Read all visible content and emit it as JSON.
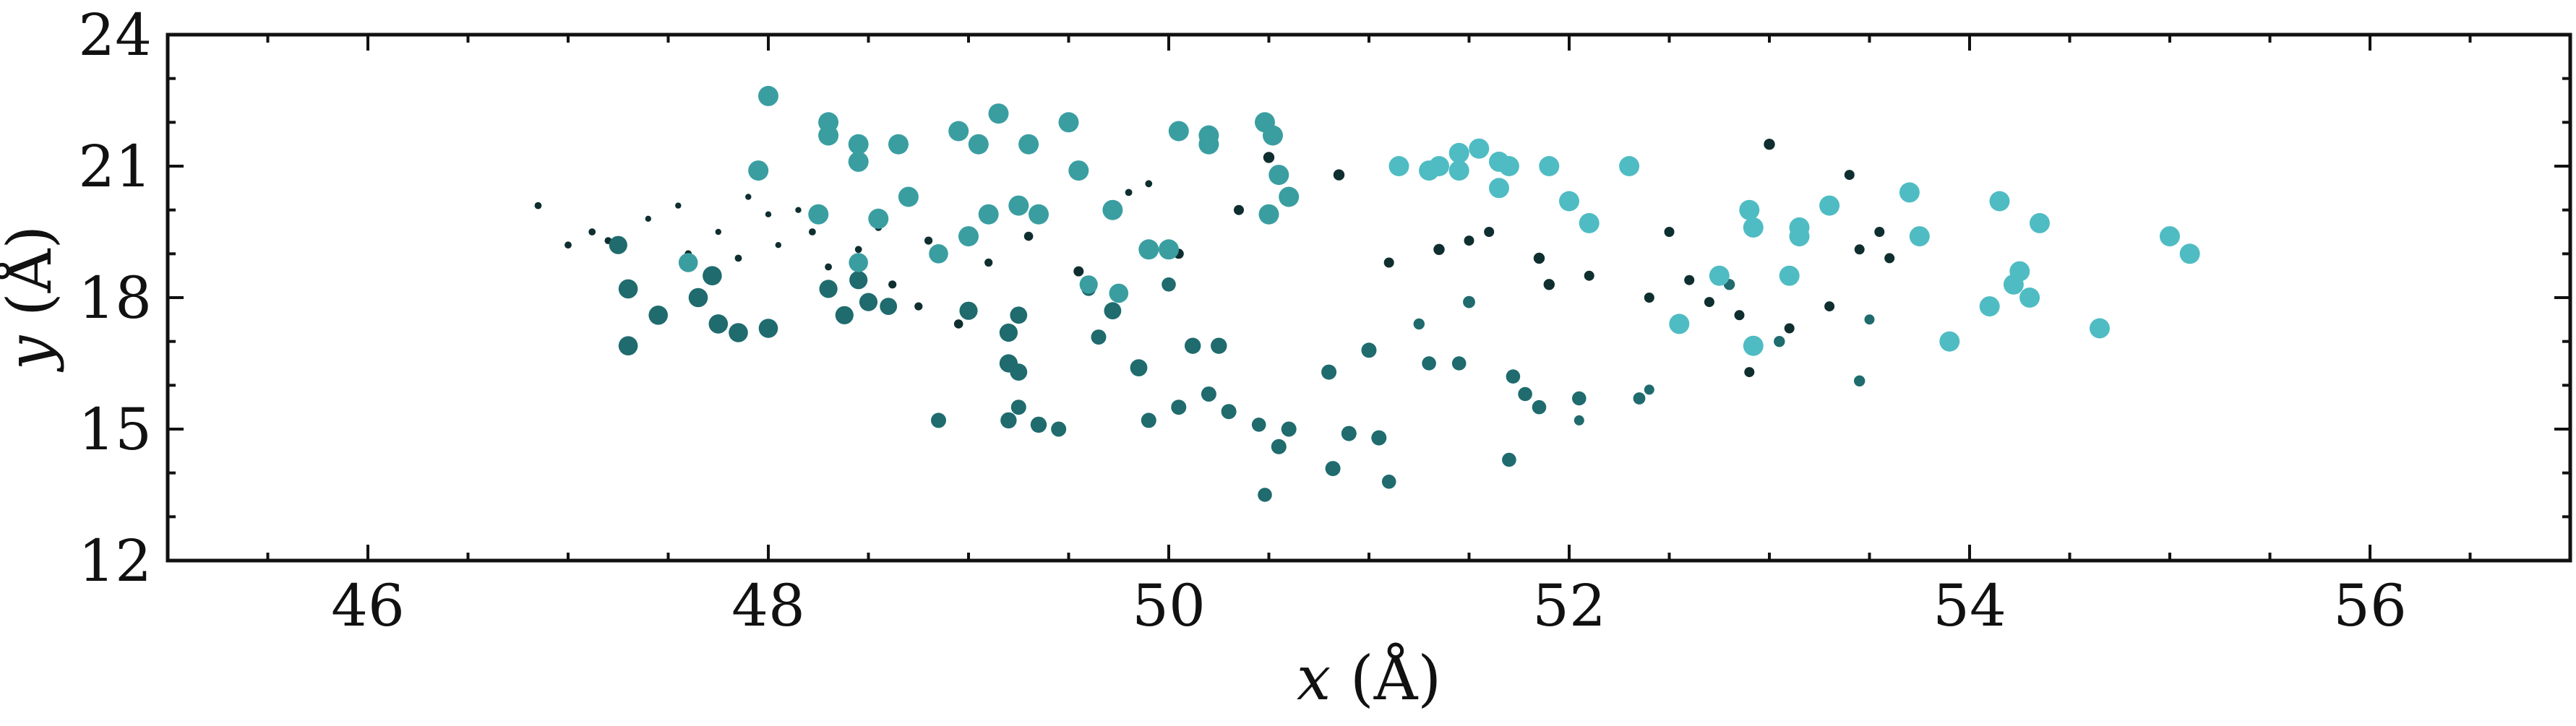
{
  "chart_data": {
    "type": "scatter",
    "xlabel": {
      "var": "x",
      "unit": " (Å)"
    },
    "ylabel": {
      "var": "y",
      "unit": " (Å)"
    },
    "xlim": [
      45,
      57
    ],
    "ylim": [
      12,
      24
    ],
    "xticks": [
      46,
      48,
      50,
      52,
      54,
      56
    ],
    "yticks": [
      12,
      15,
      18,
      21,
      24
    ],
    "xtick_labels": [
      "46",
      "48",
      "50",
      "52",
      "54",
      "56"
    ],
    "ytick_labels": [
      "12",
      "15",
      "18",
      "21",
      "24"
    ],
    "grid": false,
    "colors": {
      "small": "#0f2e2f",
      "mid": "#1f6b6e",
      "teal": "#3a9ea1",
      "light": "#4fbcc3"
    },
    "points": [
      [
        46.85,
        20.1,
        "small",
        0.35
      ],
      [
        47.0,
        19.2,
        "small",
        0.35
      ],
      [
        47.12,
        19.5,
        "small",
        0.35
      ],
      [
        47.2,
        19.3,
        "small",
        0.35
      ],
      [
        47.4,
        19.8,
        "small",
        0.3
      ],
      [
        47.55,
        20.1,
        "small",
        0.3
      ],
      [
        47.6,
        19.0,
        "small",
        0.35
      ],
      [
        47.75,
        19.5,
        "small",
        0.3
      ],
      [
        47.85,
        18.9,
        "small",
        0.35
      ],
      [
        47.9,
        20.3,
        "small",
        0.3
      ],
      [
        48.0,
        19.9,
        "small",
        0.3
      ],
      [
        48.05,
        19.2,
        "small",
        0.3
      ],
      [
        48.15,
        20.0,
        "small",
        0.3
      ],
      [
        48.22,
        19.5,
        "small",
        0.35
      ],
      [
        48.3,
        18.7,
        "small",
        0.35
      ],
      [
        48.45,
        19.1,
        "small",
        0.35
      ],
      [
        48.55,
        19.6,
        "small",
        0.35
      ],
      [
        48.62,
        18.3,
        "small",
        0.4
      ],
      [
        48.75,
        17.8,
        "small",
        0.4
      ],
      [
        48.8,
        19.3,
        "small",
        0.4
      ],
      [
        48.95,
        17.4,
        "small",
        0.45
      ],
      [
        49.1,
        18.8,
        "small",
        0.4
      ],
      [
        49.3,
        19.4,
        "small",
        0.45
      ],
      [
        49.55,
        18.6,
        "small",
        0.5
      ],
      [
        49.8,
        20.4,
        "small",
        0.35
      ],
      [
        49.9,
        20.6,
        "small",
        0.35
      ],
      [
        50.05,
        19.0,
        "small",
        0.5
      ],
      [
        50.35,
        20.0,
        "small",
        0.5
      ],
      [
        50.5,
        21.2,
        "small",
        0.55
      ],
      [
        50.85,
        20.8,
        "small",
        0.55
      ],
      [
        53.0,
        21.5,
        "small",
        0.55
      ],
      [
        47.25,
        19.2,
        "mid",
        0.9
      ],
      [
        47.3,
        18.2,
        "mid",
        0.95
      ],
      [
        47.3,
        16.9,
        "mid",
        0.95
      ],
      [
        47.45,
        17.6,
        "mid",
        0.95
      ],
      [
        47.65,
        18.0,
        "mid",
        0.95
      ],
      [
        47.72,
        18.5,
        "mid",
        0.95
      ],
      [
        47.75,
        17.4,
        "mid",
        0.95
      ],
      [
        47.85,
        17.2,
        "mid",
        0.95
      ],
      [
        48.0,
        17.3,
        "mid",
        0.95
      ],
      [
        48.3,
        18.2,
        "mid",
        0.9
      ],
      [
        48.38,
        17.6,
        "mid",
        0.9
      ],
      [
        48.45,
        18.4,
        "mid",
        0.9
      ],
      [
        48.5,
        17.9,
        "mid",
        0.9
      ],
      [
        48.6,
        17.8,
        "mid",
        0.85
      ],
      [
        48.85,
        15.2,
        "mid",
        0.75
      ],
      [
        49.0,
        17.7,
        "mid",
        0.9
      ],
      [
        49.2,
        17.2,
        "mid",
        0.9
      ],
      [
        49.2,
        16.5,
        "mid",
        0.9
      ],
      [
        49.25,
        17.6,
        "mid",
        0.85
      ],
      [
        49.25,
        16.3,
        "mid",
        0.85
      ],
      [
        49.2,
        15.2,
        "mid",
        0.8
      ],
      [
        49.25,
        15.5,
        "mid",
        0.75
      ],
      [
        49.35,
        15.1,
        "mid",
        0.8
      ],
      [
        49.45,
        15.0,
        "mid",
        0.75
      ],
      [
        49.6,
        18.2,
        "mid",
        0.7
      ],
      [
        49.65,
        17.1,
        "mid",
        0.75
      ],
      [
        49.72,
        17.7,
        "mid",
        0.85
      ],
      [
        49.85,
        16.4,
        "mid",
        0.85
      ],
      [
        49.9,
        15.2,
        "mid",
        0.75
      ],
      [
        50.0,
        18.3,
        "mid",
        0.7
      ],
      [
        50.05,
        15.5,
        "mid",
        0.75
      ],
      [
        50.12,
        16.9,
        "mid",
        0.8
      ],
      [
        50.2,
        15.8,
        "mid",
        0.75
      ],
      [
        50.25,
        16.9,
        "mid",
        0.8
      ],
      [
        50.3,
        15.4,
        "mid",
        0.75
      ],
      [
        50.45,
        15.1,
        "mid",
        0.7
      ],
      [
        50.55,
        14.6,
        "mid",
        0.75
      ],
      [
        50.6,
        15.0,
        "mid",
        0.75
      ],
      [
        50.8,
        16.3,
        "mid",
        0.75
      ],
      [
        50.9,
        14.9,
        "mid",
        0.75
      ],
      [
        51.0,
        16.8,
        "mid",
        0.75
      ],
      [
        51.05,
        14.8,
        "mid",
        0.75
      ],
      [
        51.1,
        13.8,
        "mid",
        0.7
      ],
      [
        50.48,
        13.5,
        "mid",
        0.7
      ],
      [
        50.82,
        14.1,
        "mid",
        0.75
      ],
      [
        51.25,
        17.4,
        "mid",
        0.55
      ],
      [
        51.3,
        16.5,
        "mid",
        0.7
      ],
      [
        51.45,
        16.5,
        "mid",
        0.7
      ],
      [
        51.5,
        17.9,
        "mid",
        0.6
      ],
      [
        51.72,
        16.2,
        "mid",
        0.7
      ],
      [
        51.78,
        15.8,
        "mid",
        0.7
      ],
      [
        51.85,
        15.5,
        "mid",
        0.7
      ],
      [
        51.7,
        14.3,
        "mid",
        0.7
      ],
      [
        52.05,
        15.7,
        "mid",
        0.7
      ],
      [
        52.05,
        15.2,
        "mid",
        0.5
      ],
      [
        52.35,
        15.7,
        "mid",
        0.6
      ],
      [
        52.4,
        15.9,
        "mid",
        0.5
      ],
      [
        52.8,
        18.3,
        "mid",
        0.55
      ],
      [
        53.05,
        17.0,
        "mid",
        0.55
      ],
      [
        53.45,
        16.1,
        "mid",
        0.55
      ],
      [
        53.5,
        17.5,
        "mid",
        0.5
      ],
      [
        51.1,
        18.8,
        "small",
        0.5
      ],
      [
        51.35,
        19.1,
        "small",
        0.55
      ],
      [
        51.5,
        19.3,
        "small",
        0.5
      ],
      [
        51.6,
        19.5,
        "small",
        0.5
      ],
      [
        51.85,
        18.9,
        "small",
        0.55
      ],
      [
        51.9,
        18.3,
        "small",
        0.55
      ],
      [
        52.1,
        18.5,
        "small",
        0.5
      ],
      [
        52.4,
        18.0,
        "small",
        0.5
      ],
      [
        52.5,
        19.5,
        "small",
        0.5
      ],
      [
        52.6,
        18.4,
        "small",
        0.5
      ],
      [
        52.7,
        17.9,
        "small",
        0.5
      ],
      [
        52.85,
        17.6,
        "small",
        0.5
      ],
      [
        52.9,
        16.3,
        "small",
        0.5
      ],
      [
        53.1,
        17.3,
        "small",
        0.5
      ],
      [
        53.3,
        17.8,
        "small",
        0.5
      ],
      [
        53.45,
        19.1,
        "small",
        0.5
      ],
      [
        53.55,
        19.5,
        "small",
        0.5
      ],
      [
        53.6,
        18.9,
        "small",
        0.5
      ],
      [
        53.4,
        20.8,
        "small",
        0.5
      ],
      [
        47.6,
        18.8,
        "teal",
        0.95
      ],
      [
        48.25,
        19.9,
        "teal",
        1.0
      ],
      [
        48.45,
        18.8,
        "teal",
        0.95
      ],
      [
        48.55,
        19.8,
        "teal",
        1.0
      ],
      [
        48.7,
        20.3,
        "teal",
        1.0
      ],
      [
        48.85,
        19.0,
        "teal",
        0.95
      ],
      [
        49.0,
        19.4,
        "teal",
        1.0
      ],
      [
        49.1,
        19.9,
        "teal",
        1.0
      ],
      [
        49.25,
        20.1,
        "teal",
        1.0
      ],
      [
        49.35,
        19.9,
        "teal",
        1.0
      ],
      [
        49.6,
        18.3,
        "teal",
        0.9
      ],
      [
        49.75,
        18.1,
        "teal",
        0.95
      ],
      [
        49.9,
        19.1,
        "teal",
        1.0
      ],
      [
        50.0,
        19.1,
        "teal",
        1.0
      ],
      [
        48.0,
        22.6,
        "teal",
        1.0
      ],
      [
        47.95,
        20.9,
        "teal",
        1.0
      ],
      [
        48.3,
        22.0,
        "teal",
        1.0
      ],
      [
        48.3,
        21.7,
        "teal",
        1.0
      ],
      [
        48.45,
        21.5,
        "teal",
        1.0
      ],
      [
        48.45,
        21.1,
        "teal",
        1.0
      ],
      [
        48.65,
        21.5,
        "teal",
        1.0
      ],
      [
        48.95,
        21.8,
        "teal",
        1.0
      ],
      [
        49.05,
        21.5,
        "teal",
        1.0
      ],
      [
        49.15,
        22.2,
        "teal",
        1.0
      ],
      [
        49.3,
        21.5,
        "teal",
        1.0
      ],
      [
        49.5,
        22.0,
        "teal",
        1.0
      ],
      [
        49.55,
        20.9,
        "teal",
        1.0
      ],
      [
        49.72,
        20.0,
        "teal",
        1.0
      ],
      [
        50.05,
        21.8,
        "teal",
        1.0
      ],
      [
        50.2,
        21.7,
        "teal",
        1.0
      ],
      [
        50.2,
        21.5,
        "teal",
        1.0
      ],
      [
        50.48,
        22.0,
        "teal",
        1.0
      ],
      [
        50.52,
        21.7,
        "teal",
        1.0
      ],
      [
        50.55,
        20.8,
        "teal",
        1.0
      ],
      [
        50.6,
        20.3,
        "teal",
        1.0
      ],
      [
        50.5,
        19.9,
        "teal",
        1.0
      ],
      [
        51.15,
        21.0,
        "light",
        1.0
      ],
      [
        51.3,
        20.9,
        "light",
        1.0
      ],
      [
        51.35,
        21.0,
        "light",
        1.0
      ],
      [
        51.45,
        21.3,
        "light",
        1.0
      ],
      [
        51.45,
        20.9,
        "light",
        1.0
      ],
      [
        51.55,
        21.4,
        "light",
        1.0
      ],
      [
        51.65,
        21.1,
        "light",
        1.0
      ],
      [
        51.7,
        21.0,
        "light",
        1.0
      ],
      [
        51.65,
        20.5,
        "light",
        1.0
      ],
      [
        51.9,
        21.0,
        "light",
        1.0
      ],
      [
        52.0,
        20.2,
        "light",
        1.0
      ],
      [
        52.1,
        19.7,
        "light",
        1.0
      ],
      [
        52.3,
        21.0,
        "light",
        1.0
      ],
      [
        52.55,
        17.4,
        "light",
        1.0
      ],
      [
        52.75,
        18.5,
        "light",
        1.0
      ],
      [
        52.9,
        20.0,
        "light",
        1.0
      ],
      [
        52.92,
        19.6,
        "light",
        1.0
      ],
      [
        52.92,
        16.9,
        "light",
        1.0
      ],
      [
        53.1,
        18.5,
        "light",
        1.0
      ],
      [
        53.15,
        19.6,
        "light",
        1.0
      ],
      [
        53.15,
        19.4,
        "light",
        1.0
      ],
      [
        53.3,
        20.1,
        "light",
        1.0
      ],
      [
        53.7,
        20.4,
        "light",
        1.0
      ],
      [
        53.75,
        19.4,
        "light",
        1.0
      ],
      [
        53.9,
        17.0,
        "light",
        1.0
      ],
      [
        54.1,
        17.8,
        "light",
        1.0
      ],
      [
        54.15,
        20.2,
        "light",
        1.0
      ],
      [
        54.22,
        18.3,
        "light",
        1.0
      ],
      [
        54.25,
        18.6,
        "light",
        1.0
      ],
      [
        54.3,
        18.0,
        "light",
        1.0
      ],
      [
        54.35,
        19.7,
        "light",
        1.0
      ],
      [
        54.65,
        17.3,
        "light",
        1.0
      ],
      [
        55.0,
        19.4,
        "light",
        1.0
      ],
      [
        55.1,
        19.0,
        "light",
        1.0
      ]
    ]
  }
}
